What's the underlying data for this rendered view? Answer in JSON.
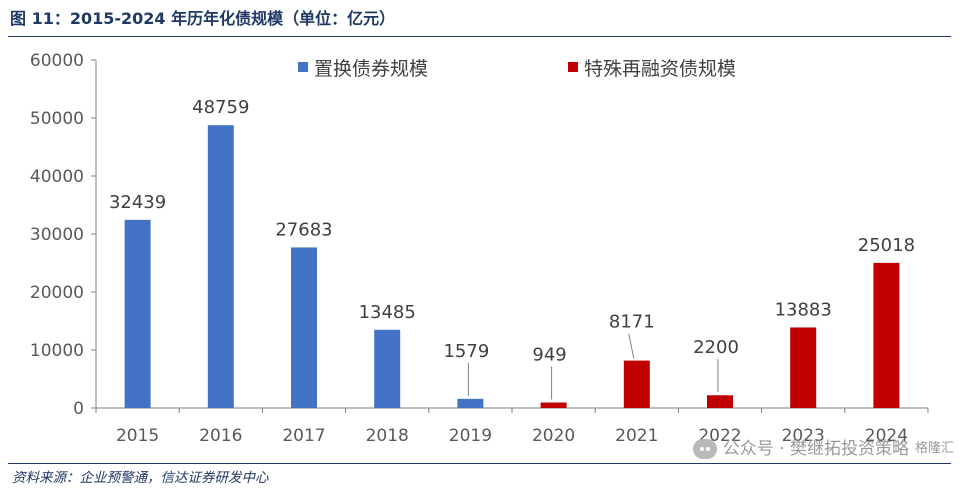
{
  "figure": {
    "title": "图 11：2015-2024 年历年化债规模（单位：亿元）",
    "source": "资料来源：企业预警通，信达证券研发中心",
    "watermark_text": "公众号 · 樊继拓投资策略",
    "watermark_badge": "格隆汇",
    "watermark_icon": "wechat-icon"
  },
  "chart_data": {
    "type": "bar",
    "categories": [
      "2015",
      "2016",
      "2017",
      "2018",
      "2019",
      "2020",
      "2021",
      "2022",
      "2023",
      "2024"
    ],
    "series": [
      {
        "name": "置换债券规模",
        "color": "#4472c4",
        "values": [
          32439,
          48759,
          27683,
          13485,
          1579,
          null,
          null,
          null,
          null,
          null
        ]
      },
      {
        "name": "特殊再融资债规模",
        "color": "#c00000",
        "values": [
          null,
          null,
          null,
          null,
          null,
          949,
          8171,
          2200,
          13883,
          25018
        ]
      }
    ],
    "ylim": [
      0,
      60000
    ],
    "yticks": [
      0,
      10000,
      20000,
      30000,
      40000,
      50000,
      60000
    ],
    "grid": false,
    "legend_position": "top"
  }
}
